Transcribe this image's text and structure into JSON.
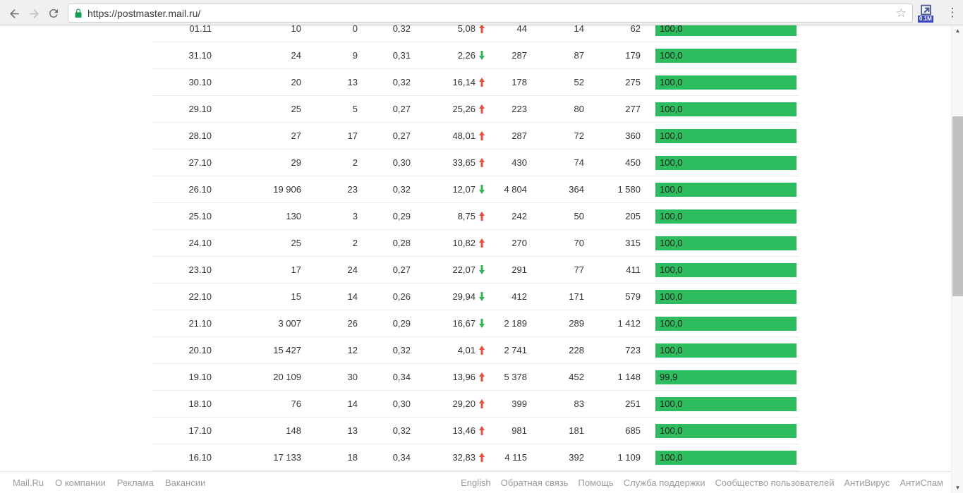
{
  "browser": {
    "url": "https://postmaster.mail.ru/",
    "extension_badge": "0.1M"
  },
  "colors": {
    "bar_green": "#2ebd5e",
    "arrow_up": "#e2523c",
    "arrow_down": "#2eb454"
  },
  "table": {
    "rows": [
      {
        "date": "01.11",
        "c2": "10",
        "c3": "0",
        "c4": "0,32",
        "c5": "5,08",
        "trend": "up",
        "c6": "44",
        "c7": "14",
        "c8": "62",
        "bar_label": "100,0",
        "bar_pct": 100
      },
      {
        "date": "31.10",
        "c2": "24",
        "c3": "9",
        "c4": "0,31",
        "c5": "2,26",
        "trend": "down",
        "c6": "287",
        "c7": "87",
        "c8": "179",
        "bar_label": "100,0",
        "bar_pct": 100
      },
      {
        "date": "30.10",
        "c2": "20",
        "c3": "13",
        "c4": "0,32",
        "c5": "16,14",
        "trend": "up",
        "c6": "178",
        "c7": "52",
        "c8": "275",
        "bar_label": "100,0",
        "bar_pct": 100
      },
      {
        "date": "29.10",
        "c2": "25",
        "c3": "5",
        "c4": "0,27",
        "c5": "25,26",
        "trend": "up",
        "c6": "223",
        "c7": "80",
        "c8": "277",
        "bar_label": "100,0",
        "bar_pct": 100
      },
      {
        "date": "28.10",
        "c2": "27",
        "c3": "17",
        "c4": "0,27",
        "c5": "48,01",
        "trend": "up",
        "c6": "287",
        "c7": "72",
        "c8": "360",
        "bar_label": "100,0",
        "bar_pct": 100
      },
      {
        "date": "27.10",
        "c2": "29",
        "c3": "2",
        "c4": "0,30",
        "c5": "33,65",
        "trend": "up",
        "c6": "430",
        "c7": "74",
        "c8": "450",
        "bar_label": "100,0",
        "bar_pct": 100
      },
      {
        "date": "26.10",
        "c2": "19 906",
        "c3": "23",
        "c4": "0,32",
        "c5": "12,07",
        "trend": "down",
        "c6": "4 804",
        "c7": "364",
        "c8": "1 580",
        "bar_label": "100,0",
        "bar_pct": 100
      },
      {
        "date": "25.10",
        "c2": "130",
        "c3": "3",
        "c4": "0,29",
        "c5": "8,75",
        "trend": "up",
        "c6": "242",
        "c7": "50",
        "c8": "205",
        "bar_label": "100,0",
        "bar_pct": 100
      },
      {
        "date": "24.10",
        "c2": "25",
        "c3": "2",
        "c4": "0,28",
        "c5": "10,82",
        "trend": "up",
        "c6": "270",
        "c7": "70",
        "c8": "315",
        "bar_label": "100,0",
        "bar_pct": 100
      },
      {
        "date": "23.10",
        "c2": "17",
        "c3": "24",
        "c4": "0,27",
        "c5": "22,07",
        "trend": "down",
        "c6": "291",
        "c7": "77",
        "c8": "411",
        "bar_label": "100,0",
        "bar_pct": 100
      },
      {
        "date": "22.10",
        "c2": "15",
        "c3": "14",
        "c4": "0,26",
        "c5": "29,94",
        "trend": "down",
        "c6": "412",
        "c7": "171",
        "c8": "579",
        "bar_label": "100,0",
        "bar_pct": 100
      },
      {
        "date": "21.10",
        "c2": "3 007",
        "c3": "26",
        "c4": "0,29",
        "c5": "16,67",
        "trend": "down",
        "c6": "2 189",
        "c7": "289",
        "c8": "1 412",
        "bar_label": "100,0",
        "bar_pct": 100
      },
      {
        "date": "20.10",
        "c2": "15 427",
        "c3": "12",
        "c4": "0,32",
        "c5": "4,01",
        "trend": "up",
        "c6": "2 741",
        "c7": "228",
        "c8": "723",
        "bar_label": "100,0",
        "bar_pct": 100
      },
      {
        "date": "19.10",
        "c2": "20 109",
        "c3": "30",
        "c4": "0,34",
        "c5": "13,96",
        "trend": "up",
        "c6": "5 378",
        "c7": "452",
        "c8": "1 148",
        "bar_label": "99,9",
        "bar_pct": 99.9
      },
      {
        "date": "18.10",
        "c2": "76",
        "c3": "14",
        "c4": "0,30",
        "c5": "29,20",
        "trend": "up",
        "c6": "399",
        "c7": "83",
        "c8": "251",
        "bar_label": "100,0",
        "bar_pct": 100
      },
      {
        "date": "17.10",
        "c2": "148",
        "c3": "13",
        "c4": "0,32",
        "c5": "13,46",
        "trend": "up",
        "c6": "981",
        "c7": "181",
        "c8": "685",
        "bar_label": "100,0",
        "bar_pct": 100
      },
      {
        "date": "16.10",
        "c2": "17 133",
        "c3": "18",
        "c4": "0,34",
        "c5": "32,83",
        "trend": "up",
        "c6": "4 115",
        "c7": "392",
        "c8": "1 109",
        "bar_label": "100,0",
        "bar_pct": 100
      }
    ]
  },
  "footer": {
    "left_links": [
      "Mail.Ru",
      "О компании",
      "Реклама",
      "Вакансии"
    ],
    "right_links": [
      "English",
      "Обратная связь",
      "Помощь",
      "Служба поддержки",
      "Сообщество пользователей",
      "АнтиВирус",
      "АнтиСпам"
    ]
  }
}
